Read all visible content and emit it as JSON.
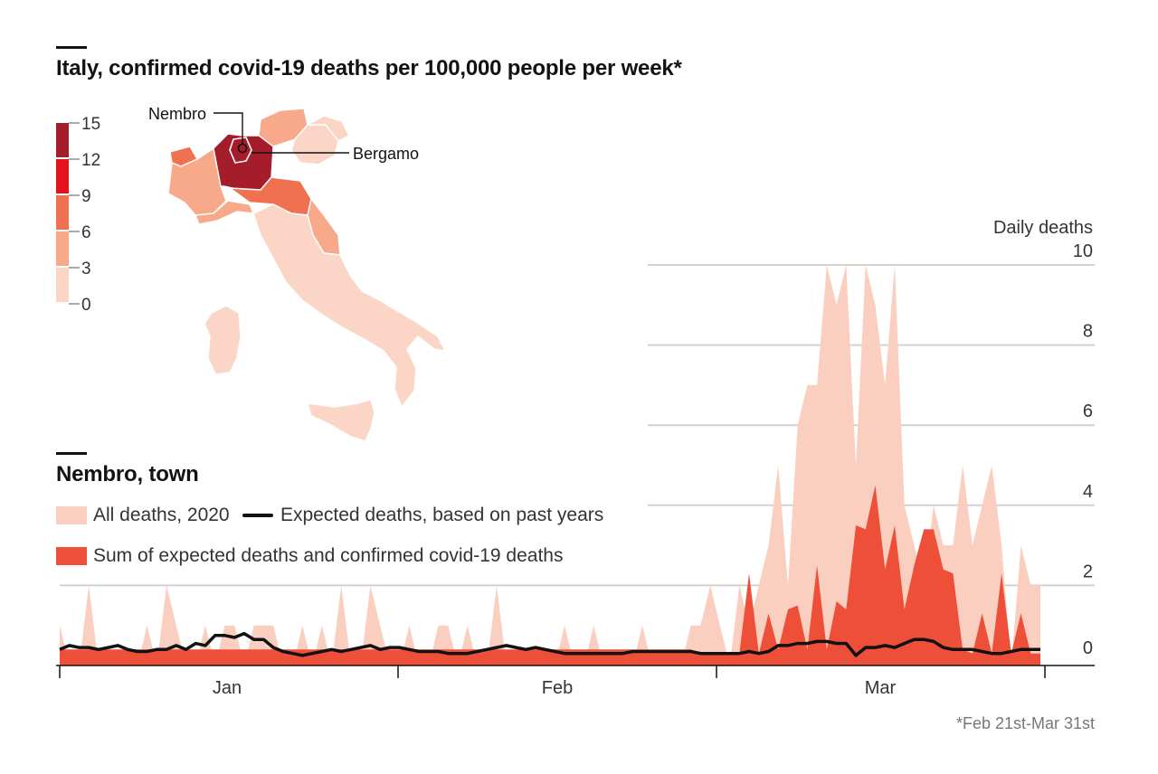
{
  "map": {
    "title": "Italy, confirmed covid-19 deaths per 100,000 people per week*",
    "scale": {
      "ticks": [
        "15",
        "12",
        "9",
        "6",
        "3",
        "0"
      ],
      "colors": [
        "#a51d2b",
        "#e3121f",
        "#f07150",
        "#f7a98a",
        "#fbd6c7"
      ]
    },
    "labels": {
      "nembro": "Nembro",
      "bergamo": "Bergamo"
    },
    "footnote": "*Feb 21st-Mar 31st"
  },
  "chart_data": {
    "type": "area",
    "title": "Nembro, town",
    "ylabel": "Daily deaths",
    "ylim": [
      0,
      10
    ],
    "yticks": [
      "0",
      "2",
      "4",
      "6",
      "8",
      "10"
    ],
    "x_range": [
      "2020-01-01",
      "2020-03-31"
    ],
    "month_labels": [
      "Jan",
      "Feb",
      "Mar"
    ],
    "legend": {
      "all": "All deaths, 2020",
      "expected": "Expected deaths, based on past years",
      "sum": "Sum of expected deaths and confirmed covid-19 deaths"
    },
    "colors": {
      "all": "#fbcfc0",
      "sum": "#ee4f39",
      "expected": "#121212"
    },
    "series": [
      {
        "name": "All deaths, 2020",
        "values": [
          1,
          0,
          0,
          2,
          0,
          0,
          0,
          0,
          0,
          1,
          0,
          2,
          1,
          0,
          0,
          1,
          0,
          1,
          1,
          0,
          1,
          1,
          1,
          0,
          0,
          1,
          0,
          1,
          0,
          2,
          0,
          0,
          2,
          1,
          0,
          0,
          1,
          0,
          0,
          1,
          1,
          0,
          1,
          0,
          0,
          2,
          0,
          0,
          0,
          0,
          0,
          0,
          1,
          0,
          0,
          1,
          0,
          0,
          0,
          0,
          1,
          0,
          0,
          0,
          0,
          1,
          1,
          2,
          1,
          0,
          2,
          1,
          2,
          3,
          5,
          2,
          6,
          7,
          7,
          10,
          9,
          10,
          5,
          10,
          9,
          7,
          10,
          4,
          3,
          2,
          4,
          3,
          3,
          5,
          3,
          4,
          5,
          3,
          0,
          3,
          2,
          2
        ]
      },
      {
        "name": "Sum of expected deaths and confirmed covid-19 deaths",
        "values": [
          0.4,
          0.4,
          0.4,
          0.4,
          0.4,
          0.4,
          0.4,
          0.4,
          0.4,
          0.4,
          0.4,
          0.4,
          0.4,
          0.4,
          0.4,
          0.4,
          0.4,
          0.4,
          0.4,
          0.4,
          0.4,
          0.4,
          0.4,
          0.4,
          0.4,
          0.4,
          0.4,
          0.4,
          0.4,
          0.4,
          0.4,
          0.4,
          0.4,
          0.4,
          0.4,
          0.4,
          0.4,
          0.4,
          0.4,
          0.4,
          0.4,
          0.4,
          0.4,
          0.4,
          0.4,
          0.4,
          0.4,
          0.4,
          0.4,
          0.4,
          0.4,
          0.4,
          0.4,
          0.4,
          0.4,
          0.4,
          0.4,
          0.4,
          0.4,
          0.4,
          0.4,
          0.4,
          0.4,
          0.4,
          0.4,
          0.4,
          0.3,
          0.3,
          0.3,
          0.3,
          0.3,
          2.3,
          0.3,
          1.3,
          0.4,
          1.4,
          1.5,
          0.4,
          2.5,
          0.4,
          1.6,
          1.4,
          3.5,
          3.4,
          4.5,
          2.4,
          3.5,
          1.4,
          2.5,
          3.4,
          3.4,
          2.4,
          2.3,
          0.4,
          0.3,
          1.3,
          0.3,
          2.3,
          0.3,
          1.3,
          0.3,
          0.3
        ]
      },
      {
        "name": "Expected deaths, based on past years",
        "values": [
          0.4,
          0.5,
          0.45,
          0.45,
          0.4,
          0.45,
          0.5,
          0.4,
          0.35,
          0.35,
          0.4,
          0.4,
          0.5,
          0.4,
          0.55,
          0.5,
          0.75,
          0.75,
          0.7,
          0.8,
          0.65,
          0.65,
          0.45,
          0.35,
          0.3,
          0.25,
          0.3,
          0.35,
          0.4,
          0.35,
          0.4,
          0.45,
          0.5,
          0.4,
          0.45,
          0.45,
          0.4,
          0.35,
          0.35,
          0.35,
          0.3,
          0.3,
          0.3,
          0.35,
          0.4,
          0.45,
          0.5,
          0.45,
          0.4,
          0.45,
          0.4,
          0.35,
          0.3,
          0.3,
          0.3,
          0.3,
          0.3,
          0.3,
          0.3,
          0.35,
          0.35,
          0.35,
          0.35,
          0.35,
          0.35,
          0.35,
          0.3,
          0.3,
          0.3,
          0.3,
          0.3,
          0.35,
          0.3,
          0.35,
          0.5,
          0.5,
          0.55,
          0.55,
          0.6,
          0.6,
          0.55,
          0.55,
          0.25,
          0.45,
          0.45,
          0.5,
          0.45,
          0.55,
          0.65,
          0.65,
          0.6,
          0.45,
          0.4,
          0.4,
          0.4,
          0.35,
          0.3,
          0.3,
          0.35,
          0.4,
          0.4,
          0.4
        ]
      }
    ]
  }
}
